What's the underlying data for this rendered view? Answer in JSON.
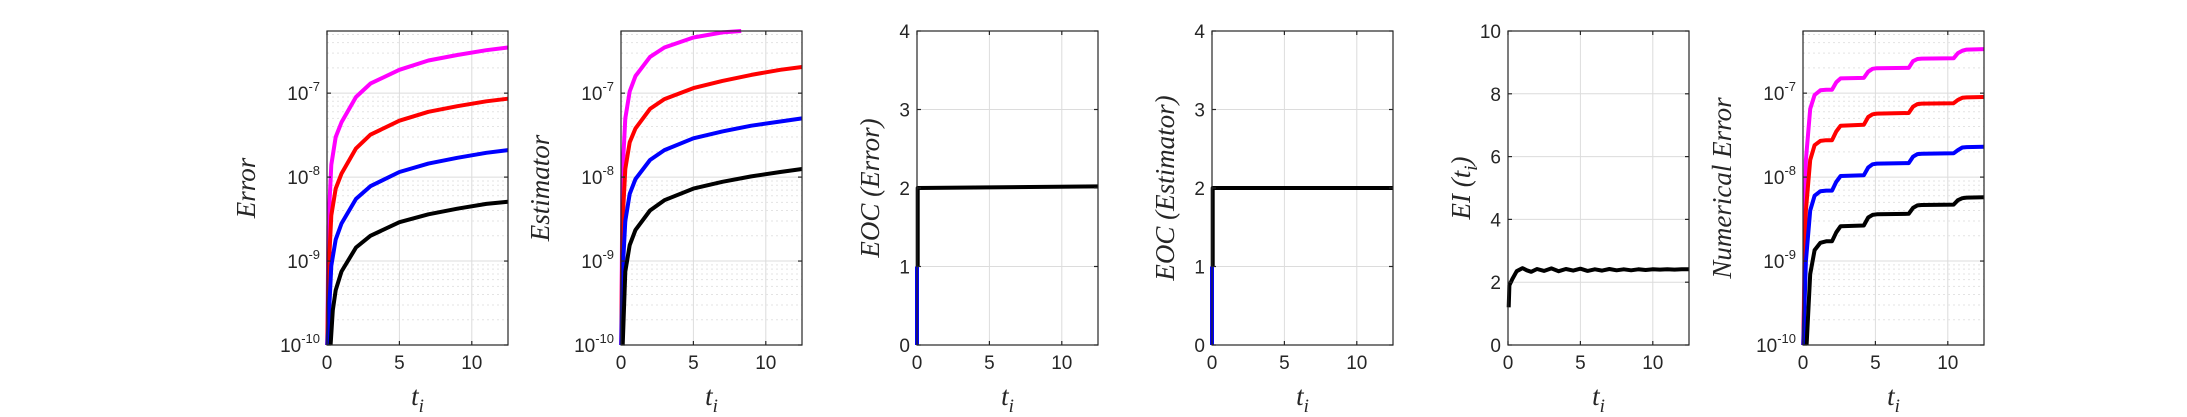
{
  "chart_data": [
    {
      "type": "line",
      "yscale": "log",
      "xlim": [
        0,
        12.5
      ],
      "ylim": [
        1e-10,
        5.5e-07
      ],
      "xticks": [
        "0",
        "5",
        "10"
      ],
      "yticks": [
        {
          "base": "10",
          "exp": "-10"
        },
        {
          "base": "10",
          "exp": "-9"
        },
        {
          "base": "10",
          "exp": "-8"
        },
        {
          "base": "10",
          "exp": "-7"
        }
      ],
      "xlabel": {
        "main": "t",
        "sub": "i"
      },
      "ylabel": "Error",
      "grid": true,
      "series": [
        {
          "color": "#ff00ff",
          "x": [
            0.02,
            0.1,
            0.3,
            0.6,
            1,
            2,
            3,
            5,
            7,
            9,
            11,
            12.5
          ],
          "y": [
            1e-10,
            2.6e-09,
            1.4e-08,
            3e-08,
            4.5e-08,
            9e-08,
            1.3e-07,
            1.9e-07,
            2.45e-07,
            2.85e-07,
            3.25e-07,
            3.5e-07
          ]
        },
        {
          "color": "#ff0000",
          "x": [
            0.02,
            0.1,
            0.3,
            0.6,
            1,
            2,
            3,
            5,
            7,
            9,
            11,
            12.5
          ],
          "y": [
            1e-10,
            6.7e-10,
            3.5e-09,
            7.3e-09,
            1.1e-08,
            2.2e-08,
            3.2e-08,
            4.7e-08,
            6e-08,
            7e-08,
            8e-08,
            8.6e-08
          ]
        },
        {
          "color": "#0000ff",
          "x": [
            0.02,
            0.1,
            0.3,
            0.6,
            1,
            2,
            3,
            5,
            7,
            9,
            11,
            12.5
          ],
          "y": [
            1e-10,
            1.7e-10,
            8.8e-10,
            1.8e-09,
            2.8e-09,
            5.5e-09,
            7.8e-09,
            1.15e-08,
            1.45e-08,
            1.7e-08,
            1.95e-08,
            2.1e-08
          ]
        },
        {
          "color": "#000000",
          "x": [
            0.25,
            0.4,
            0.6,
            1,
            2,
            3,
            5,
            7,
            9,
            11,
            12.5
          ],
          "y": [
            1e-10,
            2.6e-10,
            4.5e-10,
            7.5e-10,
            1.45e-09,
            2e-09,
            2.9e-09,
            3.6e-09,
            4.2e-09,
            4.8e-09,
            5.1e-09
          ]
        }
      ]
    },
    {
      "type": "line",
      "yscale": "log",
      "xlim": [
        0,
        12.5
      ],
      "ylim": [
        1e-10,
        5.5e-07
      ],
      "xticks": [
        "0",
        "5",
        "10"
      ],
      "yticks": [
        {
          "base": "10",
          "exp": "-10"
        },
        {
          "base": "10",
          "exp": "-9"
        },
        {
          "base": "10",
          "exp": "-8"
        },
        {
          "base": "10",
          "exp": "-7"
        }
      ],
      "xlabel": {
        "main": "t",
        "sub": "i"
      },
      "ylabel": "Estimator",
      "grid": true,
      "series": [
        {
          "color": "#ff00ff",
          "x": [
            0.02,
            0.1,
            0.3,
            0.6,
            1,
            2,
            3,
            5,
            7,
            8.3
          ],
          "y": [
            1e-10,
            1.05e-08,
            5e-08,
            1.05e-07,
            1.6e-07,
            2.7e-07,
            3.5e-07,
            4.6e-07,
            5.3e-07,
            5.5e-07
          ]
        },
        {
          "color": "#ff0000",
          "x": [
            0.02,
            0.1,
            0.3,
            0.6,
            1,
            2,
            3,
            5,
            7,
            9,
            11,
            12.5
          ],
          "y": [
            1e-10,
            2.7e-09,
            1.25e-08,
            2.6e-08,
            3.8e-08,
            6.5e-08,
            8.5e-08,
            1.15e-07,
            1.4e-07,
            1.65e-07,
            1.9e-07,
            2.05e-07
          ]
        },
        {
          "color": "#0000ff",
          "x": [
            0.02,
            0.1,
            0.3,
            0.6,
            1,
            2,
            3,
            5,
            7,
            9,
            11,
            12.5
          ],
          "y": [
            1e-10,
            6.5e-10,
            3e-09,
            6.3e-09,
            9.5e-09,
            1.6e-08,
            2.1e-08,
            2.9e-08,
            3.5e-08,
            4.1e-08,
            4.6e-08,
            5e-08
          ]
        },
        {
          "color": "#000000",
          "x": [
            0.12,
            0.3,
            0.6,
            1,
            2,
            3,
            5,
            7,
            9,
            11,
            12.5
          ],
          "y": [
            1e-10,
            7.5e-10,
            1.55e-09,
            2.35e-09,
            4e-09,
            5.3e-09,
            7.3e-09,
            8.8e-09,
            1.02e-08,
            1.15e-08,
            1.25e-08
          ]
        }
      ]
    },
    {
      "type": "line",
      "yscale": "linear",
      "xlim": [
        0,
        12.5
      ],
      "ylim": [
        0,
        4
      ],
      "xticks": [
        "0",
        "5",
        "10"
      ],
      "yticks": [
        "0",
        "1",
        "2",
        "3",
        "4"
      ],
      "xlabel": {
        "main": "t",
        "sub": "i"
      },
      "ylabel": "EOC (Error)",
      "grid": true,
      "series": [
        {
          "color": "#ff0000",
          "x": [
            0,
            0
          ],
          "y": [
            0,
            0.2
          ]
        },
        {
          "color": "#0000ff",
          "x": [
            0,
            0
          ],
          "y": [
            0,
            1.0
          ]
        },
        {
          "color": "#000000",
          "x": [
            0.05,
            0.05,
            12.5
          ],
          "y": [
            1.0,
            2.0,
            2.02
          ]
        }
      ]
    },
    {
      "type": "line",
      "yscale": "linear",
      "xlim": [
        0,
        12.5
      ],
      "ylim": [
        0,
        4
      ],
      "xticks": [
        "0",
        "5",
        "10"
      ],
      "yticks": [
        "0",
        "1",
        "2",
        "3",
        "4"
      ],
      "xlabel": {
        "main": "t",
        "sub": "i"
      },
      "ylabel": "EOC (Estimator)",
      "grid": true,
      "series": [
        {
          "color": "#ff0000",
          "x": [
            0,
            0
          ],
          "y": [
            0,
            0.2
          ]
        },
        {
          "color": "#0000ff",
          "x": [
            0,
            0
          ],
          "y": [
            0,
            1.0
          ]
        },
        {
          "color": "#000000",
          "x": [
            0.05,
            0.05,
            12.5
          ],
          "y": [
            1.0,
            2.0,
            2.0
          ]
        }
      ]
    },
    {
      "type": "line",
      "yscale": "linear",
      "xlim": [
        0,
        12.5
      ],
      "ylim": [
        0,
        10
      ],
      "xticks": [
        "0",
        "5",
        "10"
      ],
      "yticks": [
        "0",
        "2",
        "4",
        "6",
        "8",
        "10"
      ],
      "xlabel": {
        "main": "t",
        "sub": "i"
      },
      "ylabel": "EI (t_i)",
      "grid": true,
      "series": [
        {
          "color": "#000000",
          "x": [
            0.05,
            0.1,
            0.3,
            0.6,
            1,
            1.3,
            1.6,
            2,
            2.5,
            3,
            3.5,
            4,
            4.5,
            5,
            5.5,
            6,
            6.5,
            7,
            7.5,
            8,
            8.5,
            9,
            9.5,
            10,
            10.5,
            11,
            11.5,
            12,
            12.5
          ],
          "y": [
            1.2,
            1.9,
            2.1,
            2.35,
            2.45,
            2.38,
            2.33,
            2.42,
            2.36,
            2.44,
            2.35,
            2.42,
            2.37,
            2.43,
            2.36,
            2.41,
            2.37,
            2.42,
            2.38,
            2.41,
            2.38,
            2.41,
            2.39,
            2.41,
            2.4,
            2.41,
            2.4,
            2.41,
            2.41
          ]
        }
      ]
    },
    {
      "type": "line",
      "yscale": "log",
      "xlim": [
        0,
        12.5
      ],
      "ylim": [
        1e-10,
        5.5e-07
      ],
      "xticks": [
        "0",
        "5",
        "10"
      ],
      "yticks": [
        {
          "base": "10",
          "exp": "-10"
        },
        {
          "base": "10",
          "exp": "-9"
        },
        {
          "base": "10",
          "exp": "-8"
        },
        {
          "base": "10",
          "exp": "-7"
        }
      ],
      "xlabel": {
        "main": "t",
        "sub": "i"
      },
      "ylabel": "Numerical Error",
      "grid": true,
      "series": [
        {
          "color": "#ff00ff",
          "x": [
            0.02,
            0.2,
            0.5,
            0.8,
            1.2,
            1.6,
            2.0,
            2.3,
            2.6,
            4.2,
            4.5,
            4.8,
            5.1,
            7.3,
            7.6,
            7.9,
            8.2,
            10.4,
            10.7,
            11.0,
            11.3,
            12.5
          ],
          "y": [
            1e-10,
            1.6e-08,
            6.5e-08,
            9.5e-08,
            1.08e-07,
            1.1e-07,
            1.1e-07,
            1.35e-07,
            1.5e-07,
            1.52e-07,
            1.8e-07,
            1.95e-07,
            1.98e-07,
            2e-07,
            2.4e-07,
            2.55e-07,
            2.58e-07,
            2.6e-07,
            3e-07,
            3.2e-07,
            3.3e-07,
            3.35e-07
          ]
        },
        {
          "color": "#ff0000",
          "x": [
            0.02,
            0.2,
            0.5,
            0.8,
            1.2,
            1.6,
            2.0,
            2.3,
            2.6,
            4.2,
            4.5,
            4.8,
            5.1,
            7.3,
            7.6,
            7.9,
            8.2,
            10.4,
            10.7,
            11.0,
            11.3,
            12.5
          ],
          "y": [
            1e-10,
            4e-09,
            1.6e-08,
            2.4e-08,
            2.7e-08,
            2.75e-08,
            2.75e-08,
            3.5e-08,
            4.1e-08,
            4.2e-08,
            5.2e-08,
            5.6e-08,
            5.7e-08,
            5.8e-08,
            6.9e-08,
            7.4e-08,
            7.5e-08,
            7.6e-08,
            8.3e-08,
            8.8e-08,
            8.9e-08,
            9e-08
          ]
        },
        {
          "color": "#0000ff",
          "x": [
            0.02,
            0.2,
            0.5,
            0.8,
            1.2,
            1.6,
            2.0,
            2.3,
            2.6,
            4.2,
            4.5,
            4.8,
            5.1,
            7.3,
            7.6,
            7.9,
            8.2,
            10.4,
            10.7,
            11.0,
            11.3,
            12.5
          ],
          "y": [
            1e-10,
            1e-09,
            4e-09,
            6e-09,
            6.8e-09,
            6.9e-09,
            6.9e-09,
            8.8e-09,
            1.03e-08,
            1.05e-08,
            1.3e-08,
            1.42e-08,
            1.45e-08,
            1.47e-08,
            1.75e-08,
            1.88e-08,
            1.9e-08,
            1.92e-08,
            2.1e-08,
            2.25e-08,
            2.28e-08,
            2.3e-08
          ]
        },
        {
          "color": "#000000",
          "x": [
            0.25,
            0.5,
            0.8,
            1.2,
            1.6,
            2.0,
            2.3,
            2.6,
            4.2,
            4.5,
            4.8,
            5.1,
            7.3,
            7.6,
            7.9,
            8.2,
            10.4,
            10.7,
            11.0,
            11.3,
            12.5
          ],
          "y": [
            1e-10,
            7e-10,
            1.35e-09,
            1.65e-09,
            1.72e-09,
            1.72e-09,
            2.2e-09,
            2.6e-09,
            2.65e-09,
            3.3e-09,
            3.55e-09,
            3.6e-09,
            3.65e-09,
            4.3e-09,
            4.6e-09,
            4.65e-09,
            4.7e-09,
            5.3e-09,
            5.6e-09,
            5.7e-09,
            5.75e-09
          ]
        }
      ]
    }
  ]
}
